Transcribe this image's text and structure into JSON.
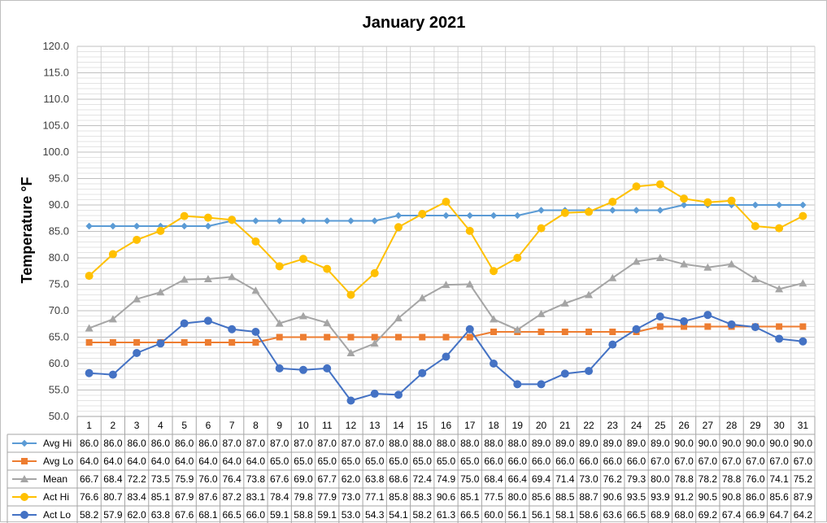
{
  "chart_data": {
    "type": "line",
    "title": "January 2021",
    "xlabel": "",
    "ylabel": "Temperature °F",
    "ylim": [
      50.0,
      120.0
    ],
    "ytick_step": 5,
    "yticks": [
      "50.0",
      "55.0",
      "60.0",
      "65.0",
      "70.0",
      "75.0",
      "80.0",
      "85.0",
      "90.0",
      "95.0",
      "100.0",
      "105.0",
      "110.0",
      "115.0",
      "120.0"
    ],
    "grid": true,
    "legend": "data-table",
    "categories": [
      "1",
      "2",
      "3",
      "4",
      "5",
      "6",
      "7",
      "8",
      "9",
      "10",
      "11",
      "12",
      "13",
      "14",
      "15",
      "16",
      "17",
      "18",
      "19",
      "20",
      "21",
      "22",
      "23",
      "24",
      "25",
      "26",
      "27",
      "28",
      "29",
      "30",
      "31"
    ],
    "series": [
      {
        "name": "Avg Hi",
        "color": "#5b9bd5",
        "marker": "diamond",
        "values": [
          86.0,
          86.0,
          86.0,
          86.0,
          86.0,
          86.0,
          87.0,
          87.0,
          87.0,
          87.0,
          87.0,
          87.0,
          87.0,
          88.0,
          88.0,
          88.0,
          88.0,
          88.0,
          88.0,
          89.0,
          89.0,
          89.0,
          89.0,
          89.0,
          89.0,
          90.0,
          90.0,
          90.0,
          90.0,
          90.0,
          90.0
        ]
      },
      {
        "name": "Avg Lo",
        "color": "#ed7d31",
        "marker": "square",
        "values": [
          64.0,
          64.0,
          64.0,
          64.0,
          64.0,
          64.0,
          64.0,
          64.0,
          65.0,
          65.0,
          65.0,
          65.0,
          65.0,
          65.0,
          65.0,
          65.0,
          65.0,
          66.0,
          66.0,
          66.0,
          66.0,
          66.0,
          66.0,
          66.0,
          67.0,
          67.0,
          67.0,
          67.0,
          67.0,
          67.0,
          67.0
        ]
      },
      {
        "name": "Mean",
        "color": "#a5a5a5",
        "marker": "triangle",
        "values": [
          66.7,
          68.4,
          72.2,
          73.5,
          75.9,
          76.0,
          76.4,
          73.8,
          67.6,
          69.0,
          67.7,
          62.0,
          63.8,
          68.6,
          72.4,
          74.9,
          75.0,
          68.4,
          66.4,
          69.4,
          71.4,
          73.0,
          76.2,
          79.3,
          80.0,
          78.8,
          78.2,
          78.8,
          76.0,
          74.1,
          75.2
        ]
      },
      {
        "name": "Act Hi",
        "color": "#ffc000",
        "marker": "circle",
        "values": [
          76.6,
          80.7,
          83.4,
          85.1,
          87.9,
          87.6,
          87.2,
          83.1,
          78.4,
          79.8,
          77.9,
          73.0,
          77.1,
          85.8,
          88.3,
          90.6,
          85.1,
          77.5,
          80.0,
          85.6,
          88.5,
          88.7,
          90.6,
          93.5,
          93.9,
          91.2,
          90.5,
          90.8,
          86.0,
          85.6,
          87.9
        ]
      },
      {
        "name": "Act Lo",
        "color": "#4472c4",
        "marker": "circle",
        "values": [
          58.2,
          57.9,
          62.0,
          63.8,
          67.6,
          68.1,
          66.5,
          66.0,
          59.1,
          58.8,
          59.1,
          53.0,
          54.3,
          54.1,
          58.2,
          61.3,
          66.5,
          60.0,
          56.1,
          56.1,
          58.1,
          58.6,
          63.6,
          66.5,
          68.9,
          68.0,
          69.2,
          67.4,
          66.9,
          64.7,
          64.2
        ]
      }
    ]
  }
}
